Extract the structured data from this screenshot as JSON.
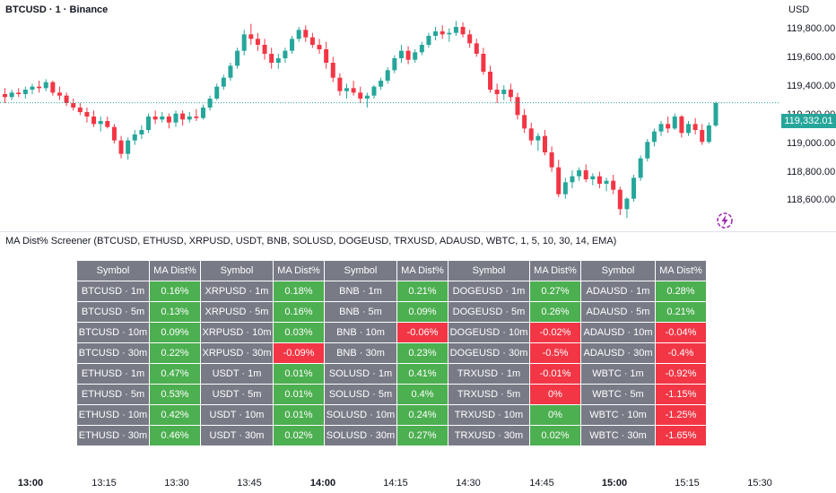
{
  "header": {
    "title": "BTCUSD · 1 · Binance",
    "currency": "USD"
  },
  "price_axis": [
    "119,800.00",
    "119,600.00",
    "119,400.00",
    "119,200.00",
    "119,000.00",
    "118,800.00",
    "118,600.00"
  ],
  "last_price": "119,332.01",
  "indicator_title": "MA Dist% Screener (BTCUSD, ETHUSD, XRPUSD, USDT, BNB, SOLUSD, DOGEUSD, TRXUSD, ADAUSD, WBTC, 1, 5, 10, 30, 14, EMA)",
  "screener": {
    "headers": [
      "Symbol",
      "MA Dist%",
      "Symbol",
      "MA Dist%",
      "Symbol",
      "MA Dist%",
      "Symbol",
      "MA Dist%",
      "Symbol",
      "MA Dist%"
    ],
    "rows": [
      [
        "BTCUSD · 1m",
        "0.16%",
        "XRPUSD · 1m",
        "0.18%",
        "BNB · 1m",
        "0.21%",
        "DOGEUSD · 1m",
        "0.27%",
        "ADAUSD · 1m",
        "0.28%"
      ],
      [
        "BTCUSD · 5m",
        "0.13%",
        "XRPUSD · 5m",
        "0.16%",
        "BNB · 5m",
        "0.09%",
        "DOGEUSD · 5m",
        "0.26%",
        "ADAUSD · 5m",
        "0.21%"
      ],
      [
        "BTCUSD · 10m",
        "0.09%",
        "XRPUSD · 10m",
        "0.03%",
        "BNB · 10m",
        "-0.06%",
        "DOGEUSD · 10m",
        "-0.02%",
        "ADAUSD · 10m",
        "-0.04%"
      ],
      [
        "BTCUSD · 30m",
        "0.22%",
        "XRPUSD · 30m",
        "-0.09%",
        "BNB · 30m",
        "0.23%",
        "DOGEUSD · 30m",
        "-0.5%",
        "ADAUSD · 30m",
        "-0.4%"
      ],
      [
        "ETHUSD · 1m",
        "0.47%",
        "USDT · 1m",
        "0.01%",
        "SOLUSD · 1m",
        "0.41%",
        "TRXUSD · 1m",
        "-0.01%",
        "WBTC · 1m",
        "-0.92%"
      ],
      [
        "ETHUSD · 5m",
        "0.53%",
        "USDT · 5m",
        "0.01%",
        "SOLUSD · 5m",
        "0.4%",
        "TRXUSD · 5m",
        "0%",
        "WBTC · 5m",
        "-1.15%"
      ],
      [
        "ETHUSD · 10m",
        "0.42%",
        "USDT · 10m",
        "0.01%",
        "SOLUSD · 10m",
        "0.24%",
        "TRXUSD · 10m",
        "0%",
        "WBTC · 10m",
        "-1.25%"
      ],
      [
        "ETHUSD · 30m",
        "0.46%",
        "USDT · 30m",
        "0.02%",
        "SOLUSD · 30m",
        "0.27%",
        "TRXUSD · 30m",
        "0.02%",
        "WBTC · 30m",
        "-1.65%"
      ]
    ],
    "cell_colors": [
      [
        "pos",
        "pos",
        "pos",
        "pos",
        "pos"
      ],
      [
        "pos",
        "pos",
        "pos",
        "pos",
        "pos"
      ],
      [
        "pos",
        "pos",
        "neg",
        "neg",
        "neg"
      ],
      [
        "pos",
        "neg",
        "pos",
        "neg",
        "neg"
      ],
      [
        "pos",
        "pos",
        "pos",
        "neg",
        "neg"
      ],
      [
        "pos",
        "pos",
        "pos",
        "neg",
        "neg"
      ],
      [
        "pos",
        "pos",
        "pos",
        "pos",
        "neg"
      ],
      [
        "pos",
        "pos",
        "pos",
        "pos",
        "neg"
      ]
    ]
  },
  "time_axis": [
    {
      "label": "13:00",
      "bold": true
    },
    {
      "label": "13:15",
      "bold": false
    },
    {
      "label": "13:30",
      "bold": false
    },
    {
      "label": "13:45",
      "bold": false
    },
    {
      "label": "14:00",
      "bold": true
    },
    {
      "label": "14:15",
      "bold": false
    },
    {
      "label": "14:30",
      "bold": false
    },
    {
      "label": "14:45",
      "bold": false
    },
    {
      "label": "15:00",
      "bold": true
    },
    {
      "label": "15:15",
      "bold": false
    },
    {
      "label": "15:30",
      "bold": false
    }
  ],
  "colors": {
    "up": "#26a69a",
    "down": "#f23645",
    "positive_cell": "#4caf50",
    "negative_cell": "#f23645",
    "symbol_cell": "#787b86"
  },
  "chart_data": {
    "type": "candlestick",
    "x_start": "12:59",
    "x_interval": "1m",
    "ohlc": [
      [
        119390,
        119430,
        119330,
        119370
      ],
      [
        119370,
        119420,
        119350,
        119400
      ],
      [
        119400,
        119430,
        119370,
        119390
      ],
      [
        119390,
        119440,
        119360,
        119420
      ],
      [
        119420,
        119460,
        119390,
        119440
      ],
      [
        119440,
        119480,
        119400,
        119430
      ],
      [
        119430,
        119490,
        119410,
        119470
      ],
      [
        119470,
        119480,
        119380,
        119400
      ],
      [
        119400,
        119440,
        119350,
        119380
      ],
      [
        119380,
        119400,
        119310,
        119330
      ],
      [
        119330,
        119360,
        119280,
        119300
      ],
      [
        119300,
        119330,
        119250,
        119270
      ],
      [
        119270,
        119300,
        119200,
        119240
      ],
      [
        119240,
        119280,
        119170,
        119190
      ],
      [
        119190,
        119240,
        119140,
        119210
      ],
      [
        119210,
        119240,
        119160,
        119170
      ],
      [
        119170,
        119190,
        119060,
        119080
      ],
      [
        119080,
        119110,
        118960,
        118990
      ],
      [
        118990,
        119100,
        118950,
        119080
      ],
      [
        119080,
        119150,
        119050,
        119120
      ],
      [
        119120,
        119180,
        119090,
        119150
      ],
      [
        119150,
        119260,
        119130,
        119240
      ],
      [
        119240,
        119280,
        119190,
        119220
      ],
      [
        119220,
        119270,
        119200,
        119240
      ],
      [
        119240,
        119260,
        119160,
        119200
      ],
      [
        119200,
        119280,
        119170,
        119260
      ],
      [
        119260,
        119280,
        119180,
        119220
      ],
      [
        119220,
        119270,
        119200,
        119240
      ],
      [
        119240,
        119290,
        119210,
        119230
      ],
      [
        119230,
        119320,
        119220,
        119300
      ],
      [
        119300,
        119380,
        119280,
        119360
      ],
      [
        119360,
        119460,
        119350,
        119440
      ],
      [
        119440,
        119520,
        119420,
        119500
      ],
      [
        119500,
        119600,
        119480,
        119580
      ],
      [
        119580,
        119700,
        119560,
        119680
      ],
      [
        119680,
        119820,
        119650,
        119790
      ],
      [
        119790,
        119860,
        119720,
        119760
      ],
      [
        119760,
        119800,
        119680,
        119720
      ],
      [
        119720,
        119760,
        119620,
        119660
      ],
      [
        119660,
        119700,
        119560,
        119600
      ],
      [
        119600,
        119660,
        119560,
        119630
      ],
      [
        119630,
        119700,
        119600,
        119680
      ],
      [
        119680,
        119780,
        119660,
        119760
      ],
      [
        119760,
        119840,
        119740,
        119820
      ],
      [
        119820,
        119850,
        119740,
        119770
      ],
      [
        119770,
        119800,
        119700,
        119720
      ],
      [
        119720,
        119760,
        119660,
        119690
      ],
      [
        119690,
        119740,
        119560,
        119600
      ],
      [
        119600,
        119640,
        119470,
        119500
      ],
      [
        119500,
        119530,
        119380,
        119410
      ],
      [
        119410,
        119460,
        119360,
        119430
      ],
      [
        119430,
        119480,
        119380,
        119400
      ],
      [
        119400,
        119440,
        119330,
        119360
      ],
      [
        119360,
        119400,
        119300,
        119380
      ],
      [
        119380,
        119450,
        119360,
        119440
      ],
      [
        119440,
        119500,
        119420,
        119480
      ],
      [
        119480,
        119570,
        119460,
        119550
      ],
      [
        119550,
        119650,
        119530,
        119630
      ],
      [
        119630,
        119720,
        119600,
        119680
      ],
      [
        119680,
        119710,
        119590,
        119620
      ],
      [
        119620,
        119690,
        119600,
        119670
      ],
      [
        119670,
        119740,
        119650,
        119720
      ],
      [
        119720,
        119800,
        119700,
        119780
      ],
      [
        119780,
        119840,
        119750,
        119810
      ],
      [
        119810,
        119850,
        119760,
        119790
      ],
      [
        119790,
        119830,
        119740,
        119800
      ],
      [
        119800,
        119880,
        119780,
        119840
      ],
      [
        119840,
        119870,
        119770,
        119790
      ],
      [
        119790,
        119820,
        119700,
        119730
      ],
      [
        119730,
        119760,
        119640,
        119660
      ],
      [
        119660,
        119700,
        119520,
        119540
      ],
      [
        119540,
        119580,
        119400,
        119420
      ],
      [
        119420,
        119460,
        119330,
        119390
      ],
      [
        119390,
        119450,
        119350,
        119420
      ],
      [
        119420,
        119460,
        119340,
        119370
      ],
      [
        119370,
        119400,
        119220,
        119250
      ],
      [
        119250,
        119290,
        119130,
        119160
      ],
      [
        119160,
        119200,
        119050,
        119080
      ],
      [
        119080,
        119130,
        119010,
        119110
      ],
      [
        119110,
        119150,
        118980,
        119000
      ],
      [
        119000,
        119040,
        118870,
        118900
      ],
      [
        118900,
        118950,
        118700,
        118720
      ],
      [
        118720,
        118830,
        118690,
        118800
      ],
      [
        118800,
        118880,
        118760,
        118840
      ],
      [
        118840,
        118900,
        118810,
        118880
      ],
      [
        118880,
        118920,
        118800,
        118820
      ],
      [
        118820,
        118860,
        118780,
        118840
      ],
      [
        118840,
        118870,
        118760,
        118790
      ],
      [
        118790,
        118830,
        118740,
        118810
      ],
      [
        118810,
        118850,
        118720,
        118750
      ],
      [
        118750,
        118770,
        118580,
        118620
      ],
      [
        118620,
        118700,
        118560,
        118690
      ],
      [
        118690,
        118850,
        118670,
        118830
      ],
      [
        118830,
        118980,
        118810,
        118960
      ],
      [
        118960,
        119090,
        118940,
        119070
      ],
      [
        119070,
        119160,
        119040,
        119140
      ],
      [
        119140,
        119210,
        119110,
        119190
      ],
      [
        119190,
        119240,
        119130,
        119160
      ],
      [
        119160,
        119260,
        119150,
        119240
      ],
      [
        119240,
        119250,
        119100,
        119130
      ],
      [
        119130,
        119210,
        119110,
        119190
      ],
      [
        119190,
        119230,
        119120,
        119150
      ],
      [
        119150,
        119190,
        119050,
        119070
      ],
      [
        119070,
        119200,
        119060,
        119180
      ],
      [
        119180,
        119340,
        119170,
        119330
      ]
    ],
    "y_range": [
      118550,
      119900
    ],
    "last_price": 119332.01
  }
}
